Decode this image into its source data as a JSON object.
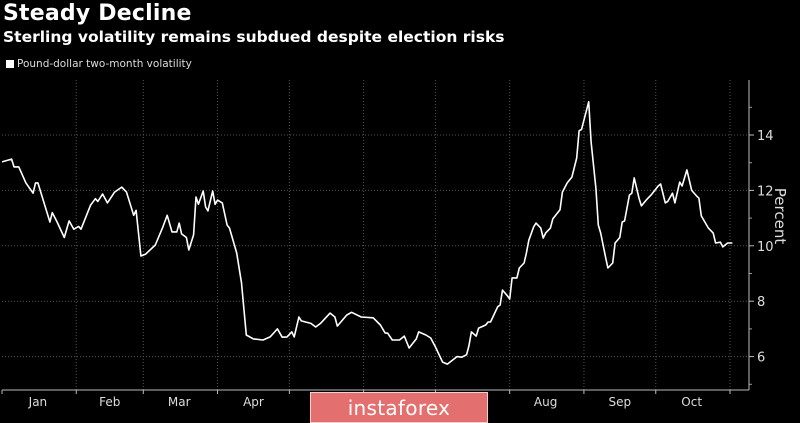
{
  "header": {
    "title": "Steady Decline",
    "subtitle": "Sterling volatility remains subdued despite election risks"
  },
  "watermark": "instaforex",
  "chart_data": {
    "type": "line",
    "title": "Steady Decline",
    "subtitle": "Sterling volatility remains subdued despite election risks",
    "xlabel": "",
    "ylabel": "Percent",
    "ylim": [
      4.8,
      16
    ],
    "y_ticks": [
      6,
      8,
      10,
      12,
      14
    ],
    "grid": true,
    "legend": "top-left",
    "x_unit": "day of year",
    "xlim": [
      0,
      308
    ],
    "month_boundaries": [
      0,
      31,
      59,
      90,
      120,
      151,
      181,
      212,
      243,
      273,
      304
    ],
    "month_labels": [
      {
        "label": "Jan",
        "mid": 15
      },
      {
        "label": "Feb",
        "mid": 45
      },
      {
        "label": "Mar",
        "mid": 74
      },
      {
        "label": "Apr",
        "mid": 105
      },
      {
        "label": "Aug",
        "mid": 227
      },
      {
        "label": "Sep",
        "mid": 258
      },
      {
        "label": "Oct",
        "mid": 288
      }
    ],
    "series": [
      {
        "name": "Pound-dollar two-month volatility",
        "color": "#ffffff",
        "x": [
          0,
          4,
          5,
          7,
          10,
          13,
          14,
          15,
          20,
          21,
          23,
          26,
          28,
          30,
          32,
          33,
          37,
          39,
          40,
          42,
          44,
          47,
          50,
          52,
          55,
          56,
          58,
          60,
          64,
          67,
          69,
          71,
          73,
          74,
          75,
          77,
          78,
          80,
          81,
          82,
          84,
          85,
          86,
          88,
          89,
          90,
          92,
          94,
          95,
          98,
          100,
          102,
          105,
          109,
          112,
          115,
          117,
          119,
          121,
          122,
          124,
          125,
          129,
          131,
          133,
          137,
          139,
          140,
          144,
          146,
          150,
          155,
          158,
          160,
          161,
          163,
          166,
          168,
          170,
          173,
          174,
          177,
          179,
          181,
          184,
          186,
          190,
          192,
          194,
          195,
          196,
          198,
          199,
          202,
          203,
          204,
          205,
          207,
          208,
          209,
          211,
          212,
          213,
          215,
          216,
          218,
          219,
          220,
          222,
          223,
          225,
          226,
          227,
          229,
          230,
          233,
          234,
          236,
          238,
          240,
          241,
          242,
          245,
          246,
          248,
          249,
          250,
          252,
          253,
          255,
          256,
          258,
          259,
          260,
          262,
          263,
          264,
          266,
          267,
          269,
          271,
          274,
          275,
          277,
          278,
          280,
          281,
          283,
          284,
          286,
          288,
          290,
          291,
          292,
          295,
          297,
          298,
          300,
          301,
          303,
          305
        ],
        "values": [
          13.03,
          13.13,
          12.85,
          12.85,
          12.27,
          11.9,
          12.27,
          12.27,
          10.86,
          11.2,
          10.86,
          10.3,
          10.9,
          10.6,
          10.7,
          10.6,
          11.47,
          11.7,
          11.6,
          11.87,
          11.55,
          11.94,
          12.12,
          11.94,
          11.1,
          11.28,
          9.63,
          9.7,
          10.03,
          10.64,
          11.1,
          10.5,
          10.5,
          10.82,
          10.43,
          10.3,
          9.85,
          10.4,
          11.76,
          11.5,
          11.98,
          11.4,
          11.26,
          11.98,
          11.5,
          11.65,
          11.55,
          10.75,
          10.64,
          9.74,
          8.66,
          6.78,
          6.64,
          6.6,
          6.71,
          7.0,
          6.7,
          6.71,
          6.89,
          6.71,
          7.43,
          7.29,
          7.2,
          7.07,
          7.2,
          7.57,
          7.43,
          7.1,
          7.5,
          7.6,
          7.43,
          7.4,
          7.14,
          6.85,
          6.85,
          6.6,
          6.6,
          6.74,
          6.31,
          6.64,
          6.89,
          6.78,
          6.67,
          6.35,
          5.8,
          5.73,
          6.0,
          5.98,
          6.07,
          6.4,
          6.89,
          6.74,
          7.03,
          7.14,
          7.25,
          7.25,
          7.43,
          7.8,
          7.86,
          8.4,
          8.2,
          8.08,
          8.84,
          8.84,
          9.2,
          9.38,
          9.74,
          10.2,
          10.68,
          10.82,
          10.64,
          10.28,
          10.46,
          10.64,
          10.97,
          11.3,
          11.94,
          12.27,
          12.48,
          13.17,
          14.15,
          14.2,
          15.2,
          13.75,
          12.08,
          10.75,
          10.46,
          9.6,
          9.2,
          9.38,
          10.1,
          10.3,
          10.86,
          10.9,
          11.83,
          11.9,
          12.45,
          11.72,
          11.44,
          11.65,
          11.83,
          12.16,
          12.23,
          11.55,
          11.6,
          11.9,
          11.55,
          12.3,
          12.16,
          12.74,
          12.0,
          11.8,
          11.72,
          11.08,
          10.64,
          10.46,
          10.1,
          10.13,
          9.96,
          10.1,
          10.1
        ]
      }
    ]
  }
}
